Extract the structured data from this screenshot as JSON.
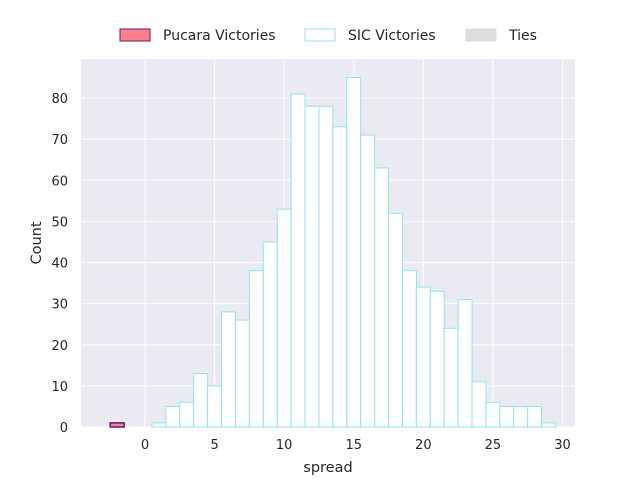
{
  "chart_data": {
    "type": "bar",
    "title": "",
    "xlabel": "spread",
    "ylabel": "Count",
    "xlim": [
      -4.6,
      30.9
    ],
    "ylim": [
      0,
      89.5
    ],
    "xticks": [
      0,
      5,
      10,
      15,
      20,
      25,
      30
    ],
    "yticks": [
      0,
      10,
      20,
      30,
      40,
      50,
      60,
      70,
      80
    ],
    "grid": true,
    "legend_position": "top-center",
    "bin_width": 1,
    "series": [
      {
        "name": "Pucara Victories",
        "fill": "#ff7f8a",
        "stroke": "#5a1a7a",
        "bins": [
          {
            "x": -2,
            "value": 1
          }
        ]
      },
      {
        "name": "SIC Victories",
        "fill": "#ffffff",
        "stroke": "#8fe3ee",
        "bins": [
          {
            "x": 1,
            "value": 1
          },
          {
            "x": 2,
            "value": 5
          },
          {
            "x": 3,
            "value": 6
          },
          {
            "x": 4,
            "value": 13
          },
          {
            "x": 5,
            "value": 10
          },
          {
            "x": 6,
            "value": 28
          },
          {
            "x": 7,
            "value": 26
          },
          {
            "x": 8,
            "value": 38
          },
          {
            "x": 9,
            "value": 45
          },
          {
            "x": 10,
            "value": 53
          },
          {
            "x": 11,
            "value": 81
          },
          {
            "x": 12,
            "value": 78
          },
          {
            "x": 13,
            "value": 78
          },
          {
            "x": 14,
            "value": 73
          },
          {
            "x": 15,
            "value": 85
          },
          {
            "x": 16,
            "value": 71
          },
          {
            "x": 17,
            "value": 63
          },
          {
            "x": 18,
            "value": 52
          },
          {
            "x": 19,
            "value": 38
          },
          {
            "x": 20,
            "value": 34
          },
          {
            "x": 21,
            "value": 33
          },
          {
            "x": 22,
            "value": 24
          },
          {
            "x": 23,
            "value": 31
          },
          {
            "x": 24,
            "value": 11
          },
          {
            "x": 25,
            "value": 6
          },
          {
            "x": 26,
            "value": 5
          },
          {
            "x": 27,
            "value": 5
          },
          {
            "x": 28,
            "value": 5
          },
          {
            "x": 29,
            "value": 1
          }
        ]
      },
      {
        "name": "Ties",
        "fill": "#dddddd",
        "stroke": "#dddddd",
        "bins": []
      }
    ]
  },
  "colors": {
    "plot_background": "#eaeaf2",
    "grid": "#ffffff",
    "text": "#262626"
  }
}
